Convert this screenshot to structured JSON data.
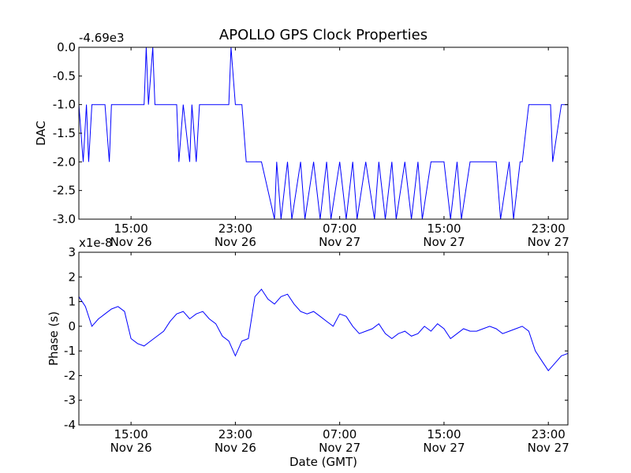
{
  "chart_data": [
    {
      "type": "line",
      "title": "APOLLO GPS Clock Properties",
      "xlabel": "",
      "ylabel": "DAC",
      "offset_text": "-4.69e3",
      "y_offset": -4690,
      "ylim": [
        -3.0,
        0.0
      ],
      "yticks": [
        0.0,
        -0.5,
        -1.0,
        -1.5,
        -2.0,
        -2.5,
        -3.0
      ],
      "ytick_labels": [
        "0.0",
        "-0.5",
        "-1.0",
        "-1.5",
        "-2.0",
        "-2.5",
        "-3.0"
      ],
      "xlim": [
        "2013-11-26T11:00",
        "2013-11-28T00:30"
      ],
      "xticks": [
        "2013-11-26T15:00",
        "2013-11-26T23:00",
        "2013-11-27T07:00",
        "2013-11-27T15:00",
        "2013-11-27T23:00"
      ],
      "xtick_labels": [
        [
          "15:00",
          "Nov 26"
        ],
        [
          "23:00",
          "Nov 26"
        ],
        [
          "07:00",
          "Nov 27"
        ],
        [
          "15:00",
          "Nov 27"
        ],
        [
          "23:00",
          "Nov 27"
        ]
      ],
      "color": "#0000ff",
      "grid": false,
      "series": [
        {
          "x": [
            "2013-11-26T11:00",
            "2013-11-26T11:20",
            "2013-11-26T11:35",
            "2013-11-26T11:45",
            "2013-11-26T12:00",
            "2013-11-26T12:30",
            "2013-11-26T13:00",
            "2013-11-26T13:20",
            "2013-11-26T13:30",
            "2013-11-26T14:00",
            "2013-11-26T14:30",
            "2013-11-26T15:00",
            "2013-11-26T16:00",
            "2013-11-26T16:10",
            "2013-11-26T16:20",
            "2013-11-26T16:40",
            "2013-11-26T16:50",
            "2013-11-26T17:00",
            "2013-11-26T17:30",
            "2013-11-26T18:00",
            "2013-11-26T18:30",
            "2013-11-26T18:40",
            "2013-11-26T19:00",
            "2013-11-26T19:30",
            "2013-11-26T19:40",
            "2013-11-26T20:00",
            "2013-11-26T20:15",
            "2013-11-26T20:30",
            "2013-11-26T21:00",
            "2013-11-26T22:00",
            "2013-11-26T22:30",
            "2013-11-26T22:40",
            "2013-11-26T23:00",
            "2013-11-26T23:30",
            "2013-11-26T23:50",
            "2013-11-27T00:30",
            "2013-11-27T01:00",
            "2013-11-27T02:00",
            "2013-11-27T02:10",
            "2013-11-27T02:30",
            "2013-11-27T03:00",
            "2013-11-27T03:20",
            "2013-11-27T04:00",
            "2013-11-27T04:20",
            "2013-11-27T05:00",
            "2013-11-27T05:30",
            "2013-11-27T06:00",
            "2013-11-27T06:20",
            "2013-11-27T07:00",
            "2013-11-27T07:30",
            "2013-11-27T08:00",
            "2013-11-27T08:20",
            "2013-11-27T09:00",
            "2013-11-27T09:40",
            "2013-11-27T10:00",
            "2013-11-27T10:30",
            "2013-11-27T11:00",
            "2013-11-27T11:20",
            "2013-11-27T12:00",
            "2013-11-27T12:30",
            "2013-11-27T13:00",
            "2013-11-27T13:20",
            "2013-11-27T14:00",
            "2013-11-27T14:40",
            "2013-11-27T15:00",
            "2013-11-27T15:30",
            "2013-11-27T16:00",
            "2013-11-27T16:20",
            "2013-11-27T17:00",
            "2013-11-27T18:00",
            "2013-11-27T19:00",
            "2013-11-27T19:20",
            "2013-11-27T20:00",
            "2013-11-27T20:20",
            "2013-11-27T20:50",
            "2013-11-27T21:00",
            "2013-11-27T21:30",
            "2013-11-27T22:00",
            "2013-11-27T22:30",
            "2013-11-27T23:00",
            "2013-11-27T23:10",
            "2013-11-27T23:20",
            "2013-11-28T00:00",
            "2013-11-28T00:30"
          ],
          "y": [
            -1.0,
            -2.0,
            -1.0,
            -2.0,
            -1.0,
            -1.0,
            -1.0,
            -2.0,
            -1.0,
            -1.0,
            -1.0,
            -1.0,
            -1.0,
            0.0,
            -1.0,
            0.0,
            -1.0,
            -1.0,
            -1.0,
            -1.0,
            -1.0,
            -2.0,
            -1.0,
            -2.0,
            -1.0,
            -2.0,
            -1.0,
            -1.0,
            -1.0,
            -1.0,
            -1.0,
            0.0,
            -1.0,
            -1.0,
            -2.0,
            -2.0,
            -2.0,
            -3.0,
            -2.0,
            -3.0,
            -2.0,
            -3.0,
            -2.0,
            -3.0,
            -2.0,
            -3.0,
            -2.0,
            -3.0,
            -2.0,
            -3.0,
            -2.0,
            -3.0,
            -2.0,
            -3.0,
            -2.0,
            -3.0,
            -2.0,
            -3.0,
            -2.0,
            -3.0,
            -2.0,
            -3.0,
            -2.0,
            -2.0,
            -2.0,
            -3.0,
            -2.0,
            -3.0,
            -2.0,
            -2.0,
            -2.0,
            -3.0,
            -2.0,
            -3.0,
            -2.0,
            -2.0,
            -1.0,
            -1.0,
            -1.0,
            -1.0,
            -1.0,
            -2.0,
            -1.0,
            -1.0
          ]
        }
      ]
    },
    {
      "type": "line",
      "title": "",
      "xlabel": "Date (GMT)",
      "ylabel": "Phase (s)",
      "offset_text": "x1e-8",
      "y_scale": 1e-08,
      "ylim": [
        -4,
        3
      ],
      "yticks": [
        3,
        2,
        1,
        0,
        -1,
        -2,
        -3,
        -4
      ],
      "ytick_labels": [
        "3",
        "2",
        "1",
        "0",
        "-1",
        "-2",
        "-3",
        "-4"
      ],
      "xlim": [
        "2013-11-26T11:00",
        "2013-11-28T00:30"
      ],
      "xticks": [
        "2013-11-26T15:00",
        "2013-11-26T23:00",
        "2013-11-27T07:00",
        "2013-11-27T15:00",
        "2013-11-27T23:00"
      ],
      "xtick_labels": [
        [
          "15:00",
          "Nov 26"
        ],
        [
          "23:00",
          "Nov 26"
        ],
        [
          "07:00",
          "Nov 27"
        ],
        [
          "15:00",
          "Nov 27"
        ],
        [
          "23:00",
          "Nov 27"
        ]
      ],
      "color": "#0000ff",
      "grid": false,
      "series": [
        {
          "x": [
            "2013-11-26T11:00",
            "2013-11-26T11:30",
            "2013-11-26T12:00",
            "2013-11-26T12:30",
            "2013-11-26T13:00",
            "2013-11-26T13:30",
            "2013-11-26T14:00",
            "2013-11-26T14:30",
            "2013-11-26T15:00",
            "2013-11-26T15:30",
            "2013-11-26T16:00",
            "2013-11-26T16:30",
            "2013-11-26T17:00",
            "2013-11-26T17:30",
            "2013-11-26T18:00",
            "2013-11-26T18:30",
            "2013-11-26T19:00",
            "2013-11-26T19:30",
            "2013-11-26T20:00",
            "2013-11-26T20:30",
            "2013-11-26T21:00",
            "2013-11-26T21:30",
            "2013-11-26T22:00",
            "2013-11-26T22:30",
            "2013-11-26T23:00",
            "2013-11-26T23:30",
            "2013-11-27T00:00",
            "2013-11-27T00:30",
            "2013-11-27T01:00",
            "2013-11-27T01:30",
            "2013-11-27T02:00",
            "2013-11-27T02:30",
            "2013-11-27T03:00",
            "2013-11-27T03:30",
            "2013-11-27T04:00",
            "2013-11-27T04:30",
            "2013-11-27T05:00",
            "2013-11-27T05:30",
            "2013-11-27T06:00",
            "2013-11-27T06:30",
            "2013-11-27T07:00",
            "2013-11-27T07:30",
            "2013-11-27T08:00",
            "2013-11-27T08:30",
            "2013-11-27T09:00",
            "2013-11-27T09:30",
            "2013-11-27T10:00",
            "2013-11-27T10:30",
            "2013-11-27T11:00",
            "2013-11-27T11:30",
            "2013-11-27T12:00",
            "2013-11-27T12:30",
            "2013-11-27T13:00",
            "2013-11-27T13:30",
            "2013-11-27T14:00",
            "2013-11-27T14:30",
            "2013-11-27T15:00",
            "2013-11-27T15:30",
            "2013-11-27T16:00",
            "2013-11-27T16:30",
            "2013-11-27T17:00",
            "2013-11-27T17:30",
            "2013-11-27T18:00",
            "2013-11-27T18:30",
            "2013-11-27T19:00",
            "2013-11-27T19:30",
            "2013-11-27T20:00",
            "2013-11-27T20:30",
            "2013-11-27T21:00",
            "2013-11-27T21:30",
            "2013-11-27T22:00",
            "2013-11-27T22:30",
            "2013-11-27T23:00",
            "2013-11-27T23:30",
            "2013-11-28T00:00",
            "2013-11-28T00:30"
          ],
          "y": [
            1.2,
            0.8,
            0.0,
            0.3,
            0.5,
            0.7,
            0.8,
            0.6,
            -0.5,
            -0.7,
            -0.8,
            -0.6,
            -0.4,
            -0.2,
            0.2,
            0.5,
            0.6,
            0.3,
            0.5,
            0.6,
            0.3,
            0.1,
            -0.4,
            -0.6,
            -1.2,
            -0.6,
            -0.5,
            1.2,
            1.5,
            1.1,
            0.9,
            1.2,
            1.3,
            0.9,
            0.6,
            0.5,
            0.6,
            0.4,
            0.2,
            0.0,
            0.5,
            0.4,
            0.0,
            -0.3,
            -0.2,
            -0.1,
            0.1,
            -0.3,
            -0.5,
            -0.3,
            -0.2,
            -0.4,
            -0.3,
            0.0,
            -0.2,
            0.1,
            -0.1,
            -0.5,
            -0.3,
            -0.1,
            -0.2,
            -0.2,
            -0.1,
            0.0,
            -0.1,
            -0.3,
            -0.2,
            -0.1,
            0.0,
            -0.2,
            -1.0,
            -1.4,
            -1.8,
            -1.5,
            -1.2,
            -1.1
          ]
        }
      ]
    }
  ]
}
